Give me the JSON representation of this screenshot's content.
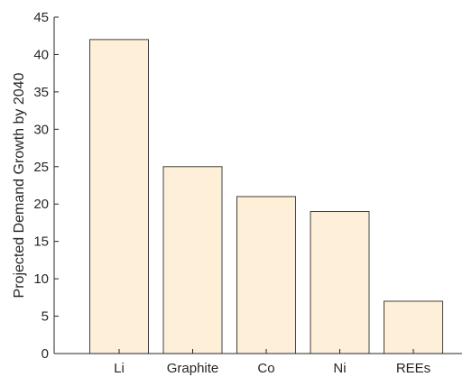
{
  "chart_data": {
    "type": "bar",
    "title": "",
    "xlabel": "",
    "ylabel": "Projected Demand Growth by 2040",
    "categories": [
      "Li",
      "Graphite",
      "Co",
      "Ni",
      "REEs"
    ],
    "values": [
      42,
      25,
      21,
      19,
      7
    ],
    "ylim": [
      0,
      45
    ],
    "yticks": [
      0,
      5,
      10,
      15,
      20,
      25,
      30,
      35,
      40,
      45
    ],
    "grid": false,
    "legend": "none",
    "bar_fill": "#fdefd8",
    "bar_edge": "#404040",
    "axis_color": "#262626"
  }
}
